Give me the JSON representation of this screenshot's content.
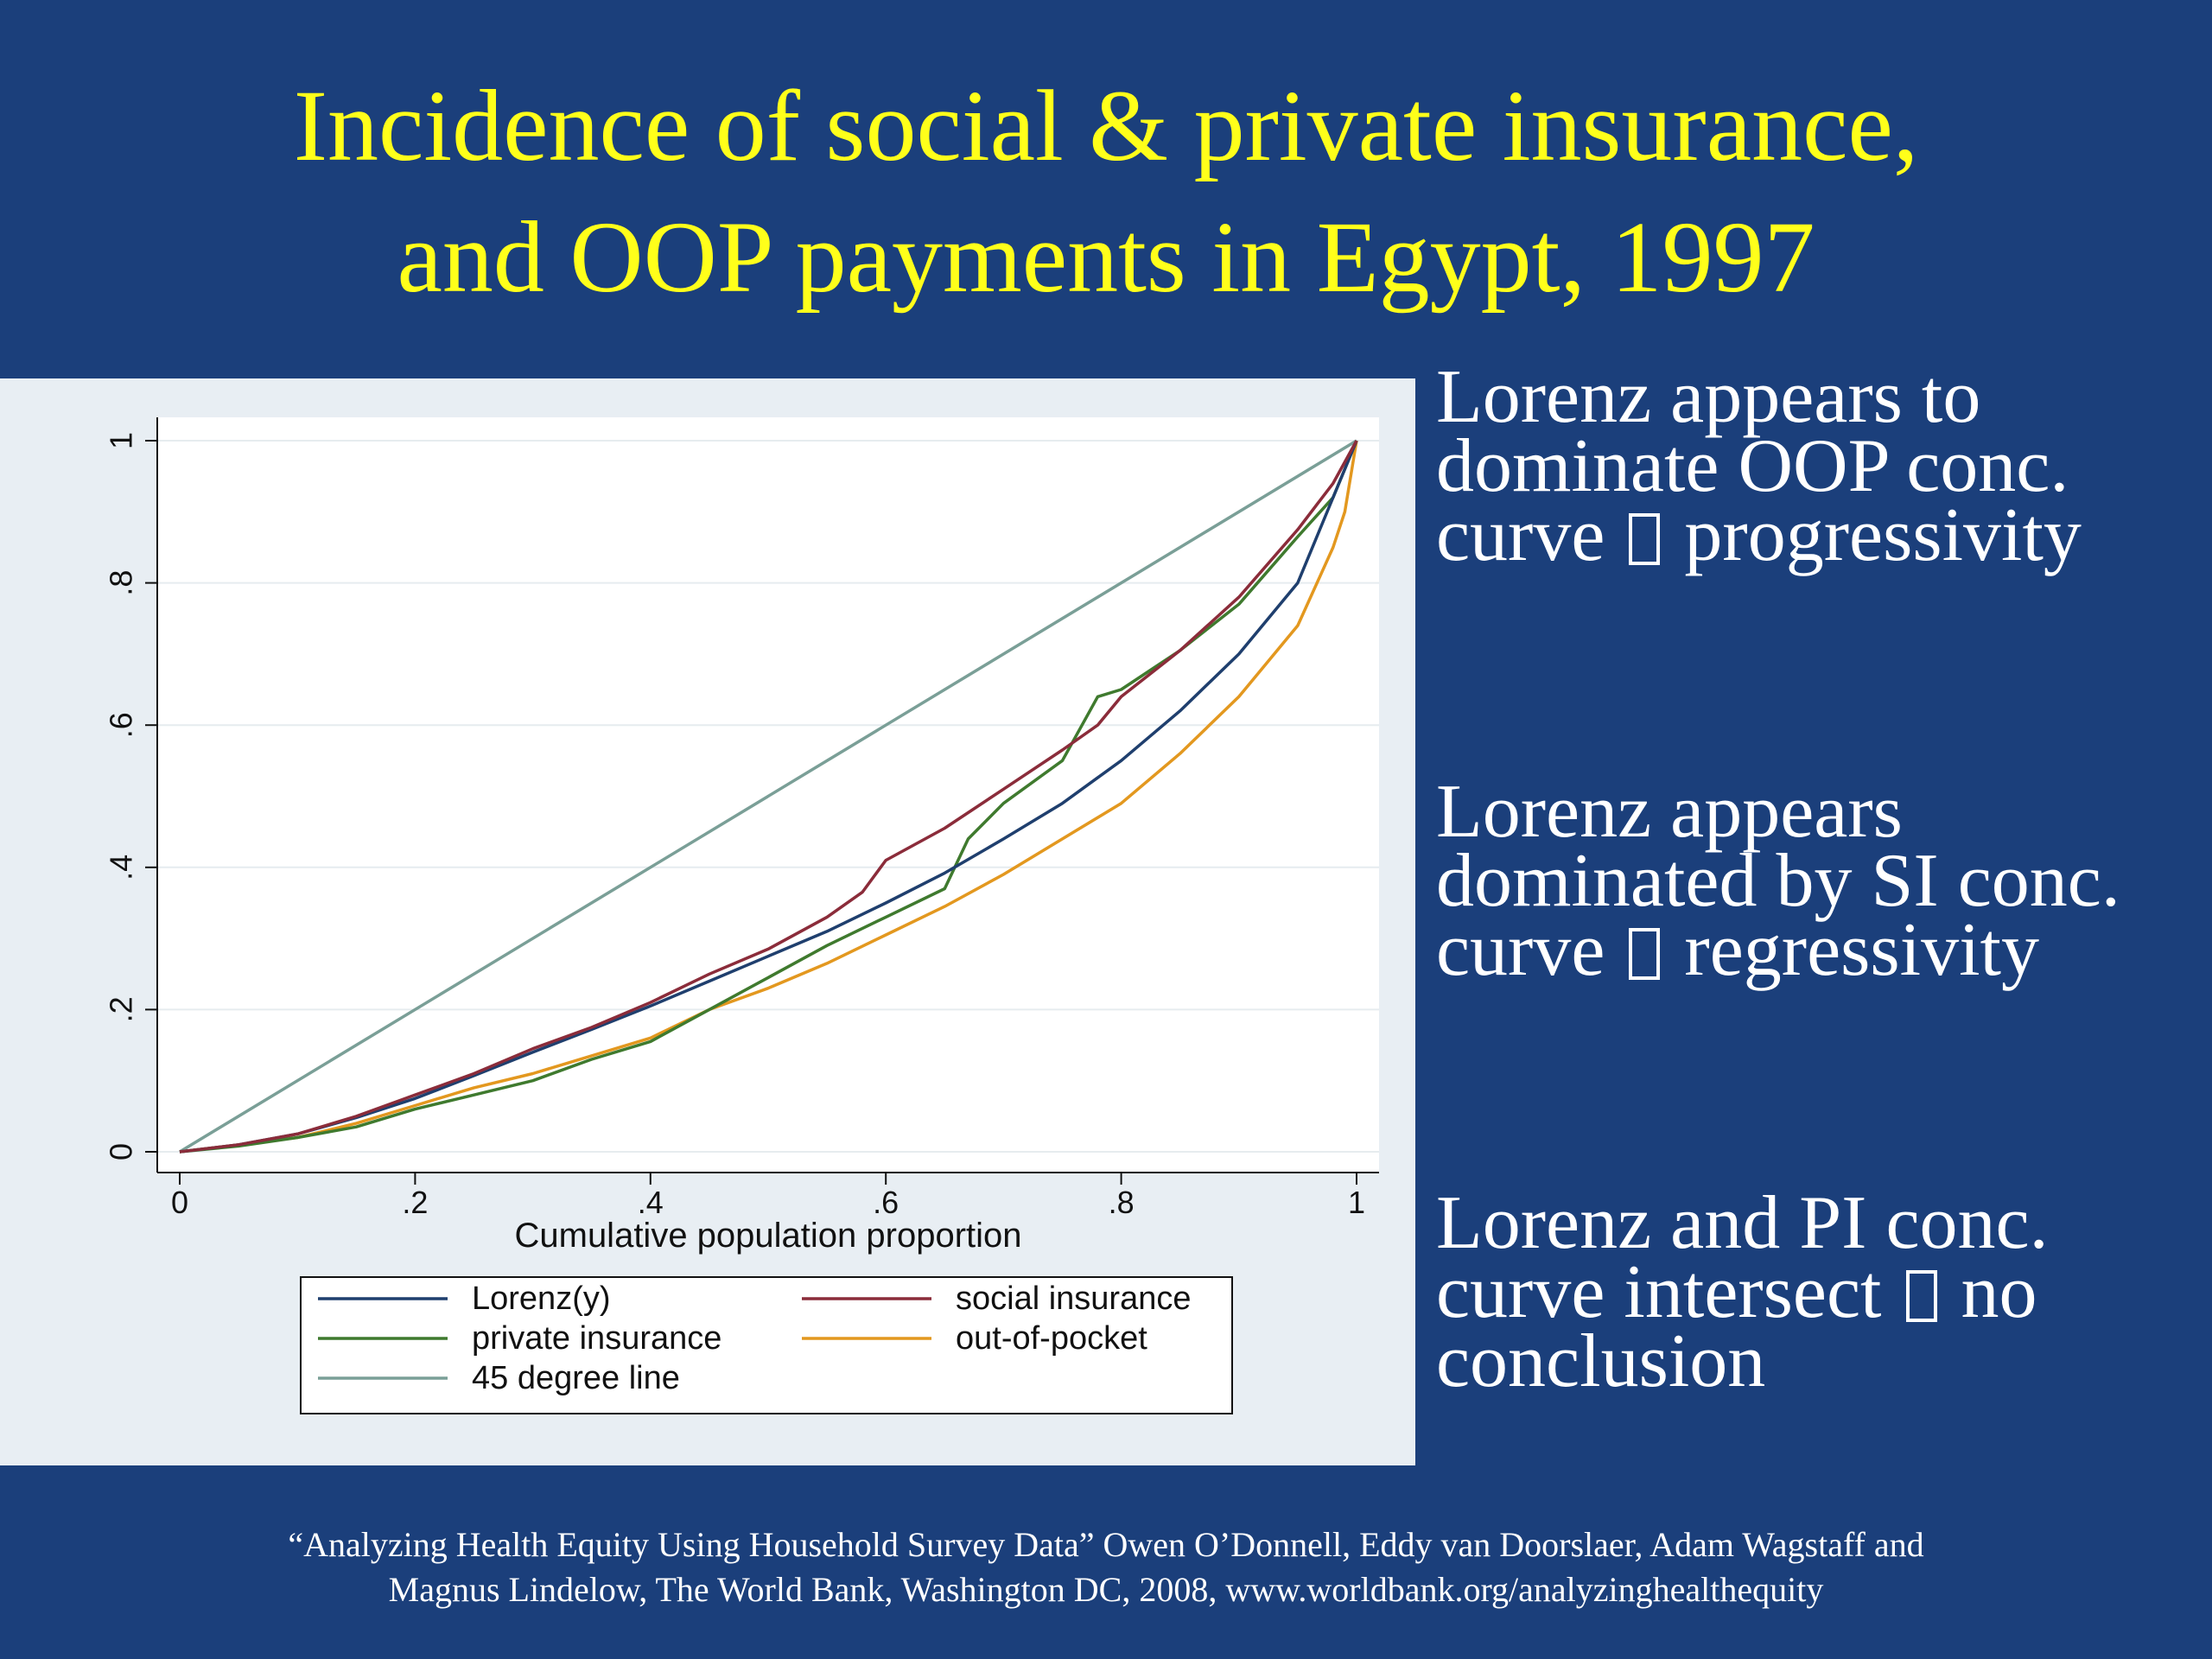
{
  "slide": {
    "title_line1": "Incidence of social & private insurance,",
    "title_line2": "and OOP payments in Egypt, 1997"
  },
  "bullets": [
    {
      "lines": [
        "Lorenz appears to",
        "dominate OOP conc.",
        [
          "curve ",
          " progressivity"
        ]
      ]
    },
    {
      "lines": [
        "Lorenz appears",
        "dominated by SI conc.",
        [
          "curve ",
          " regressivity"
        ]
      ]
    },
    {
      "lines": [
        "Lorenz and PI conc.",
        [
          "curve intersect ",
          " no"
        ],
        "conclusion"
      ]
    }
  ],
  "citation": {
    "line1": "“Analyzing Health Equity Using Household Survey Data” Owen O’Donnell, Eddy van Doorslaer, Adam Wagstaff and",
    "line2": "Magnus Lindelow, The World Bank, Washington DC, 2008, www.worldbank.org/analyzinghealthequity"
  },
  "chart_data": {
    "type": "line",
    "title": "",
    "xlabel": "Cumulative population proportion",
    "ylabel": "",
    "xlim": [
      0,
      1
    ],
    "ylim": [
      0,
      1
    ],
    "xticks": [
      0,
      0.2,
      0.4,
      0.6,
      0.8,
      1
    ],
    "xtick_labels": [
      "0",
      ".2",
      ".4",
      ".6",
      ".8",
      "1"
    ],
    "yticks": [
      0,
      0.2,
      0.4,
      0.6,
      0.8,
      1
    ],
    "ytick_labels": [
      "0",
      ".2",
      ".4",
      ".6",
      ".8",
      "1"
    ],
    "grid": true,
    "legend_position": "bottom",
    "series": [
      {
        "name": "Lorenz(y)",
        "color": "#1f3f6e",
        "x": [
          0,
          0.05,
          0.1,
          0.15,
          0.2,
          0.25,
          0.3,
          0.35,
          0.4,
          0.45,
          0.5,
          0.55,
          0.6,
          0.65,
          0.7,
          0.75,
          0.8,
          0.85,
          0.9,
          0.95,
          1
        ],
        "y": [
          0,
          0.01,
          0.025,
          0.048,
          0.075,
          0.107,
          0.14,
          0.172,
          0.205,
          0.24,
          0.275,
          0.31,
          0.35,
          0.392,
          0.44,
          0.49,
          0.55,
          0.62,
          0.7,
          0.8,
          1
        ]
      },
      {
        "name": "social insurance",
        "color": "#8b2c3a",
        "x": [
          0,
          0.05,
          0.1,
          0.15,
          0.2,
          0.25,
          0.3,
          0.35,
          0.4,
          0.45,
          0.5,
          0.55,
          0.58,
          0.6,
          0.65,
          0.7,
          0.75,
          0.78,
          0.8,
          0.85,
          0.9,
          0.95,
          0.98,
          1
        ],
        "y": [
          0,
          0.01,
          0.025,
          0.05,
          0.08,
          0.11,
          0.145,
          0.175,
          0.21,
          0.25,
          0.285,
          0.33,
          0.365,
          0.41,
          0.455,
          0.51,
          0.565,
          0.6,
          0.64,
          0.705,
          0.78,
          0.875,
          0.94,
          1
        ]
      },
      {
        "name": "private insurance",
        "color": "#3f7a2e",
        "x": [
          0,
          0.05,
          0.1,
          0.15,
          0.2,
          0.25,
          0.3,
          0.35,
          0.4,
          0.45,
          0.5,
          0.55,
          0.6,
          0.65,
          0.67,
          0.7,
          0.75,
          0.78,
          0.8,
          0.85,
          0.9,
          0.95,
          0.98,
          1
        ],
        "y": [
          0,
          0.008,
          0.02,
          0.035,
          0.06,
          0.08,
          0.1,
          0.13,
          0.155,
          0.2,
          0.245,
          0.29,
          0.33,
          0.37,
          0.44,
          0.49,
          0.55,
          0.64,
          0.65,
          0.705,
          0.77,
          0.865,
          0.92,
          1
        ]
      },
      {
        "name": "out-of-pocket",
        "color": "#e3981f",
        "x": [
          0,
          0.05,
          0.1,
          0.15,
          0.2,
          0.25,
          0.3,
          0.35,
          0.4,
          0.45,
          0.5,
          0.55,
          0.6,
          0.65,
          0.7,
          0.75,
          0.8,
          0.85,
          0.9,
          0.95,
          0.98,
          0.99,
          1
        ],
        "y": [
          0,
          0.01,
          0.02,
          0.04,
          0.065,
          0.09,
          0.11,
          0.135,
          0.16,
          0.2,
          0.23,
          0.265,
          0.305,
          0.345,
          0.39,
          0.44,
          0.49,
          0.56,
          0.64,
          0.74,
          0.85,
          0.9,
          1
        ]
      },
      {
        "name": "45 degree line",
        "color": "#7a9f97",
        "x": [
          0,
          1
        ],
        "y": [
          0,
          1
        ]
      }
    ]
  }
}
